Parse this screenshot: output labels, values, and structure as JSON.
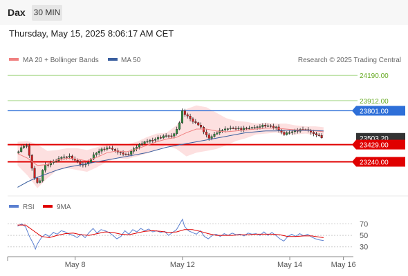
{
  "header": {
    "instrument": "Dax",
    "timeframe": "30 MIN",
    "datetime": "Thursday, May 15, 2025 8:06:17 AM CET"
  },
  "legend": {
    "items": [
      {
        "label": "MA 20 + Bollinger Bands",
        "color": "#f08080"
      },
      {
        "label": "MA 50",
        "color": "#3a5f9f"
      }
    ],
    "credit": "Research © 2025 Trading Central"
  },
  "rsi_legend": {
    "items": [
      {
        "label": "RSI",
        "color": "#5a7fd0"
      },
      {
        "label": "9MA",
        "color": "#e00000"
      }
    ]
  },
  "chart_data": [
    {
      "type": "candlestick",
      "ylim": [
        22880,
        24290
      ],
      "x_ticks": [
        {
          "label": "May 8",
          "x": 29
        },
        {
          "label": "May 12",
          "x": 83
        },
        {
          "label": "May 14",
          "x": 137
        },
        {
          "label": "May 16",
          "x": 164
        }
      ],
      "xlim": [
        -5,
        169
      ],
      "price_levels": [
        {
          "value": 24190.0,
          "label": "24190.00",
          "style": "thin-green"
        },
        {
          "value": 23912.0,
          "label": "23912.00",
          "style": "thin-green"
        },
        {
          "value": 23801.0,
          "label": "23801.00",
          "style": "blue"
        },
        {
          "value": 23503.2,
          "label": "23503.20",
          "style": "current"
        },
        {
          "value": 23429.0,
          "label": "23429.00",
          "style": "red"
        },
        {
          "value": 23240.0,
          "label": "23240.00",
          "style": "red"
        }
      ],
      "forecast_arrow": [
        {
          "x": 156,
          "y": 23500
        },
        {
          "x": 162,
          "y": 23590
        },
        {
          "x": 168,
          "y": 23255
        }
      ],
      "price_path": [
        [
          0,
          23340
        ],
        [
          3,
          23420
        ],
        [
          5,
          23410
        ],
        [
          7,
          23190
        ],
        [
          9,
          23030
        ],
        [
          11,
          22990
        ],
        [
          12,
          23130
        ],
        [
          14,
          23200
        ],
        [
          18,
          23240
        ],
        [
          22,
          23290
        ],
        [
          26,
          23300
        ],
        [
          30,
          23240
        ],
        [
          33,
          23200
        ],
        [
          36,
          23240
        ],
        [
          38,
          23310
        ],
        [
          41,
          23360
        ],
        [
          44,
          23390
        ],
        [
          47,
          23390
        ],
        [
          50,
          23350
        ],
        [
          53,
          23330
        ],
        [
          55,
          23310
        ],
        [
          57,
          23350
        ],
        [
          60,
          23410
        ],
        [
          64,
          23460
        ],
        [
          68,
          23480
        ],
        [
          72,
          23510
        ],
        [
          75,
          23530
        ],
        [
          78,
          23520
        ],
        [
          80,
          23590
        ],
        [
          82,
          23700
        ],
        [
          83,
          23810
        ],
        [
          84,
          23770
        ],
        [
          86,
          23730
        ],
        [
          88,
          23690
        ],
        [
          92,
          23630
        ],
        [
          94,
          23560
        ],
        [
          96,
          23500
        ],
        [
          98,
          23520
        ],
        [
          100,
          23560
        ],
        [
          104,
          23600
        ],
        [
          108,
          23610
        ],
        [
          112,
          23600
        ],
        [
          116,
          23610
        ],
        [
          120,
          23620
        ],
        [
          124,
          23640
        ],
        [
          127,
          23630
        ],
        [
          130,
          23620
        ],
        [
          132,
          23580
        ],
        [
          134,
          23540
        ],
        [
          136,
          23560
        ],
        [
          138,
          23570
        ],
        [
          140,
          23580
        ],
        [
          142,
          23590
        ],
        [
          144,
          23600
        ],
        [
          146,
          23590
        ],
        [
          148,
          23560
        ],
        [
          150,
          23540
        ],
        [
          152,
          23520
        ],
        [
          154,
          23503
        ]
      ],
      "ma20": [
        [
          0,
          23330
        ],
        [
          5,
          23280
        ],
        [
          10,
          23200
        ],
        [
          15,
          23210
        ],
        [
          20,
          23260
        ],
        [
          25,
          23280
        ],
        [
          30,
          23270
        ],
        [
          35,
          23250
        ],
        [
          40,
          23290
        ],
        [
          45,
          23340
        ],
        [
          50,
          23360
        ],
        [
          55,
          23350
        ],
        [
          60,
          23380
        ],
        [
          65,
          23420
        ],
        [
          70,
          23460
        ],
        [
          75,
          23490
        ],
        [
          80,
          23510
        ],
        [
          85,
          23560
        ],
        [
          90,
          23600
        ],
        [
          95,
          23600
        ],
        [
          100,
          23580
        ],
        [
          105,
          23570
        ],
        [
          110,
          23580
        ],
        [
          115,
          23590
        ],
        [
          120,
          23600
        ],
        [
          125,
          23610
        ],
        [
          130,
          23610
        ],
        [
          135,
          23600
        ],
        [
          140,
          23590
        ],
        [
          145,
          23590
        ],
        [
          150,
          23580
        ],
        [
          154,
          23570
        ]
      ],
      "bb_upper": [
        [
          0,
          23460
        ],
        [
          5,
          23470
        ],
        [
          10,
          23430
        ],
        [
          15,
          23360
        ],
        [
          20,
          23370
        ],
        [
          25,
          23390
        ],
        [
          30,
          23390
        ],
        [
          35,
          23370
        ],
        [
          40,
          23400
        ],
        [
          45,
          23440
        ],
        [
          50,
          23440
        ],
        [
          55,
          23430
        ],
        [
          60,
          23460
        ],
        [
          65,
          23510
        ],
        [
          70,
          23550
        ],
        [
          75,
          23560
        ],
        [
          80,
          23640
        ],
        [
          85,
          23820
        ],
        [
          90,
          23860
        ],
        [
          95,
          23840
        ],
        [
          100,
          23780
        ],
        [
          105,
          23720
        ],
        [
          110,
          23690
        ],
        [
          115,
          23680
        ],
        [
          120,
          23660
        ],
        [
          125,
          23670
        ],
        [
          130,
          23660
        ],
        [
          135,
          23660
        ],
        [
          140,
          23640
        ],
        [
          145,
          23630
        ],
        [
          150,
          23630
        ],
        [
          154,
          23620
        ]
      ],
      "bb_lower": [
        [
          0,
          23200
        ],
        [
          5,
          23090
        ],
        [
          10,
          22950
        ],
        [
          15,
          23060
        ],
        [
          20,
          23150
        ],
        [
          25,
          23170
        ],
        [
          30,
          23150
        ],
        [
          35,
          23130
        ],
        [
          40,
          23180
        ],
        [
          45,
          23240
        ],
        [
          50,
          23280
        ],
        [
          55,
          23270
        ],
        [
          60,
          23300
        ],
        [
          65,
          23330
        ],
        [
          70,
          23370
        ],
        [
          75,
          23420
        ],
        [
          80,
          23380
        ],
        [
          85,
          23300
        ],
        [
          90,
          23340
        ],
        [
          95,
          23360
        ],
        [
          100,
          23380
        ],
        [
          105,
          23420
        ],
        [
          110,
          23470
        ],
        [
          115,
          23500
        ],
        [
          120,
          23540
        ],
        [
          125,
          23550
        ],
        [
          130,
          23560
        ],
        [
          135,
          23540
        ],
        [
          140,
          23540
        ],
        [
          145,
          23550
        ],
        [
          150,
          23530
        ],
        [
          154,
          23520
        ]
      ],
      "ma50": [
        [
          0,
          22960
        ],
        [
          5,
          23020
        ],
        [
          10,
          23070
        ],
        [
          15,
          23110
        ],
        [
          20,
          23150
        ],
        [
          25,
          23180
        ],
        [
          30,
          23200
        ],
        [
          35,
          23220
        ],
        [
          40,
          23240
        ],
        [
          45,
          23260
        ],
        [
          50,
          23280
        ],
        [
          55,
          23300
        ],
        [
          60,
          23320
        ],
        [
          65,
          23340
        ],
        [
          70,
          23370
        ],
        [
          75,
          23400
        ],
        [
          80,
          23420
        ],
        [
          85,
          23440
        ],
        [
          90,
          23460
        ],
        [
          95,
          23480
        ],
        [
          100,
          23500
        ],
        [
          105,
          23520
        ],
        [
          110,
          23540
        ],
        [
          115,
          23560
        ],
        [
          120,
          23570
        ],
        [
          125,
          23580
        ],
        [
          130,
          23580
        ],
        [
          135,
          23585
        ],
        [
          140,
          23585
        ],
        [
          145,
          23585
        ],
        [
          150,
          23583
        ],
        [
          154,
          23580
        ]
      ]
    },
    {
      "type": "line",
      "ylim": [
        20,
        85
      ],
      "y_ticks": [
        {
          "value": 70,
          "label": "70"
        },
        {
          "value": 50,
          "label": "50"
        },
        {
          "value": 30,
          "label": "30"
        }
      ],
      "series": [
        {
          "name": "RSI",
          "color": "#5a7fd0",
          "points": [
            [
              0,
              66
            ],
            [
              2,
              70
            ],
            [
              4,
              65
            ],
            [
              6,
              48
            ],
            [
              8,
              35
            ],
            [
              9,
              26
            ],
            [
              10,
              35
            ],
            [
              12,
              46
            ],
            [
              14,
              52
            ],
            [
              16,
              48
            ],
            [
              18,
              55
            ],
            [
              20,
              52
            ],
            [
              22,
              58
            ],
            [
              24,
              56
            ],
            [
              26,
              52
            ],
            [
              28,
              50
            ],
            [
              30,
              46
            ],
            [
              32,
              52
            ],
            [
              34,
              46
            ],
            [
              36,
              55
            ],
            [
              38,
              62
            ],
            [
              40,
              54
            ],
            [
              42,
              60
            ],
            [
              44,
              58
            ],
            [
              46,
              55
            ],
            [
              48,
              50
            ],
            [
              50,
              44
            ],
            [
              52,
              48
            ],
            [
              54,
              58
            ],
            [
              56,
              52
            ],
            [
              58,
              60
            ],
            [
              60,
              56
            ],
            [
              62,
              62
            ],
            [
              64,
              58
            ],
            [
              66,
              61
            ],
            [
              68,
              56
            ],
            [
              70,
              58
            ],
            [
              72,
              55
            ],
            [
              74,
              57
            ],
            [
              76,
              50
            ],
            [
              78,
              55
            ],
            [
              80,
              60
            ],
            [
              82,
              72
            ],
            [
              83,
              78
            ],
            [
              84,
              66
            ],
            [
              86,
              58
            ],
            [
              88,
              55
            ],
            [
              90,
              52
            ],
            [
              92,
              58
            ],
            [
              94,
              48
            ],
            [
              96,
              44
            ],
            [
              98,
              50
            ],
            [
              100,
              52
            ],
            [
              102,
              48
            ],
            [
              104,
              53
            ],
            [
              106,
              50
            ],
            [
              108,
              54
            ],
            [
              110,
              51
            ],
            [
              112,
              52
            ],
            [
              114,
              49
            ],
            [
              116,
              54
            ],
            [
              118,
              52
            ],
            [
              120,
              53
            ],
            [
              122,
              50
            ],
            [
              124,
              56
            ],
            [
              126,
              50
            ],
            [
              128,
              55
            ],
            [
              130,
              50
            ],
            [
              132,
              44
            ],
            [
              134,
              40
            ],
            [
              136,
              48
            ],
            [
              138,
              52
            ],
            [
              140,
              48
            ],
            [
              142,
              53
            ],
            [
              144,
              49
            ],
            [
              146,
              52
            ],
            [
              148,
              47
            ],
            [
              150,
              44
            ],
            [
              152,
              42
            ],
            [
              154,
              41
            ]
          ]
        },
        {
          "name": "9MA",
          "color": "#e00000",
          "points": [
            [
              0,
              68
            ],
            [
              4,
              68
            ],
            [
              8,
              58
            ],
            [
              12,
              48
            ],
            [
              16,
              46
            ],
            [
              20,
              50
            ],
            [
              24,
              53
            ],
            [
              28,
              54
            ],
            [
              32,
              51
            ],
            [
              36,
              50
            ],
            [
              40,
              53
            ],
            [
              44,
              56
            ],
            [
              48,
              55
            ],
            [
              52,
              52
            ],
            [
              56,
              51
            ],
            [
              60,
              54
            ],
            [
              64,
              57
            ],
            [
              68,
              58
            ],
            [
              72,
              57
            ],
            [
              76,
              55
            ],
            [
              80,
              56
            ],
            [
              84,
              60
            ],
            [
              88,
              60
            ],
            [
              92,
              57
            ],
            [
              96,
              53
            ],
            [
              100,
              50
            ],
            [
              104,
              50
            ],
            [
              108,
              50
            ],
            [
              112,
              51
            ],
            [
              116,
              51
            ],
            [
              120,
              52
            ],
            [
              124,
              52
            ],
            [
              128,
              52
            ],
            [
              132,
              51
            ],
            [
              136,
              48
            ],
            [
              140,
              48
            ],
            [
              144,
              49
            ],
            [
              148,
              49
            ],
            [
              152,
              47
            ],
            [
              154,
              46
            ]
          ]
        }
      ]
    }
  ]
}
